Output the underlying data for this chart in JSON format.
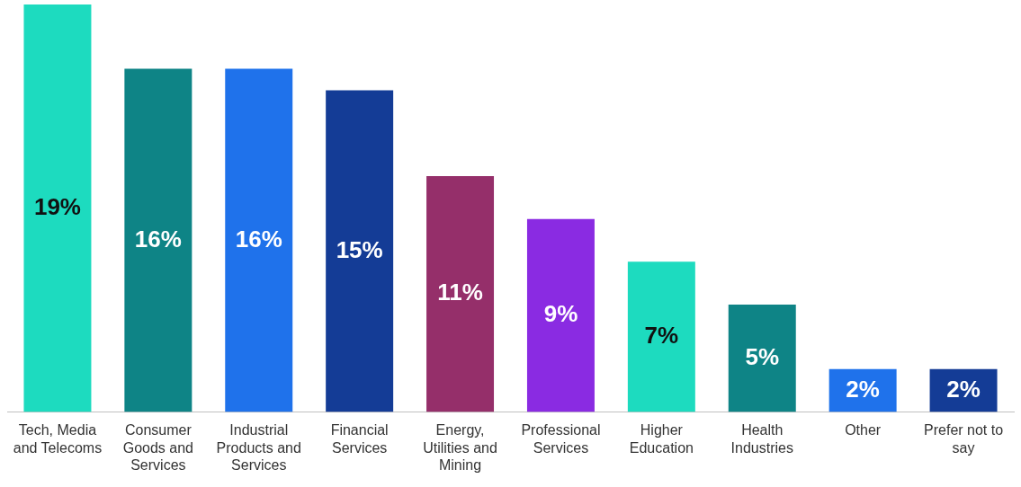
{
  "chart_data": {
    "type": "bar",
    "categories": [
      "Tech, Media and Telecoms",
      "Consumer Goods and Services",
      "Industrial Products and Services",
      "Financial Services",
      "Energy, Utilities and Mining",
      "Professional Services",
      "Higher Education",
      "Health Industries",
      "Other",
      "Prefer not to say"
    ],
    "values": [
      19,
      16,
      16,
      15,
      11,
      9,
      7,
      5,
      2,
      2
    ],
    "colors": [
      "#1ddbbf",
      "#0e8486",
      "#1f72eb",
      "#143c96",
      "#952f6a",
      "#8a2be2",
      "#1ddbbf",
      "#0e8486",
      "#1f72eb",
      "#143c96"
    ],
    "value_labels": [
      "19%",
      "16%",
      "16%",
      "15%",
      "11%",
      "9%",
      "7%",
      "5%",
      "2%",
      "2%"
    ],
    "ylim": [
      0,
      19
    ],
    "tick_labels": "x",
    "grid": false,
    "legend": false
  }
}
